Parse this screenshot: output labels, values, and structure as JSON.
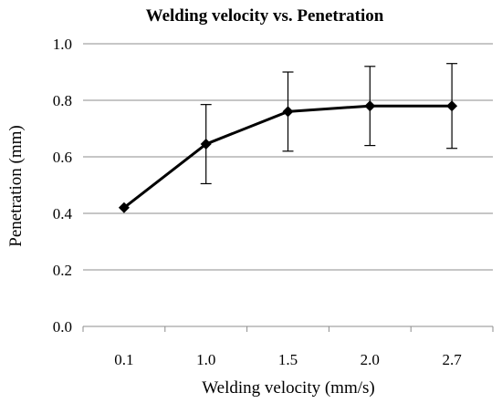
{
  "chart_data": {
    "type": "line",
    "title": "Welding velocity vs. Penetration",
    "xlabel": "Welding velocity (mm/s)",
    "ylabel": "Penetration (mm)",
    "categories": [
      "0.1",
      "1.0",
      "1.5",
      "2.0",
      "2.7"
    ],
    "series": [
      {
        "values": [
          0.42,
          0.645,
          0.76,
          0.78,
          0.78
        ],
        "error_upper": [
          0.42,
          0.785,
          0.9,
          0.92,
          0.93
        ],
        "error_lower": [
          0.42,
          0.505,
          0.62,
          0.64,
          0.63
        ],
        "color": "#000000",
        "marker": "diamond"
      }
    ],
    "ylim": [
      0,
      1.0
    ],
    "yticks": [
      "0.0",
      "0.2",
      "0.4",
      "0.6",
      "0.8",
      "1.0"
    ],
    "grid": "horizontal",
    "legend": "none"
  }
}
